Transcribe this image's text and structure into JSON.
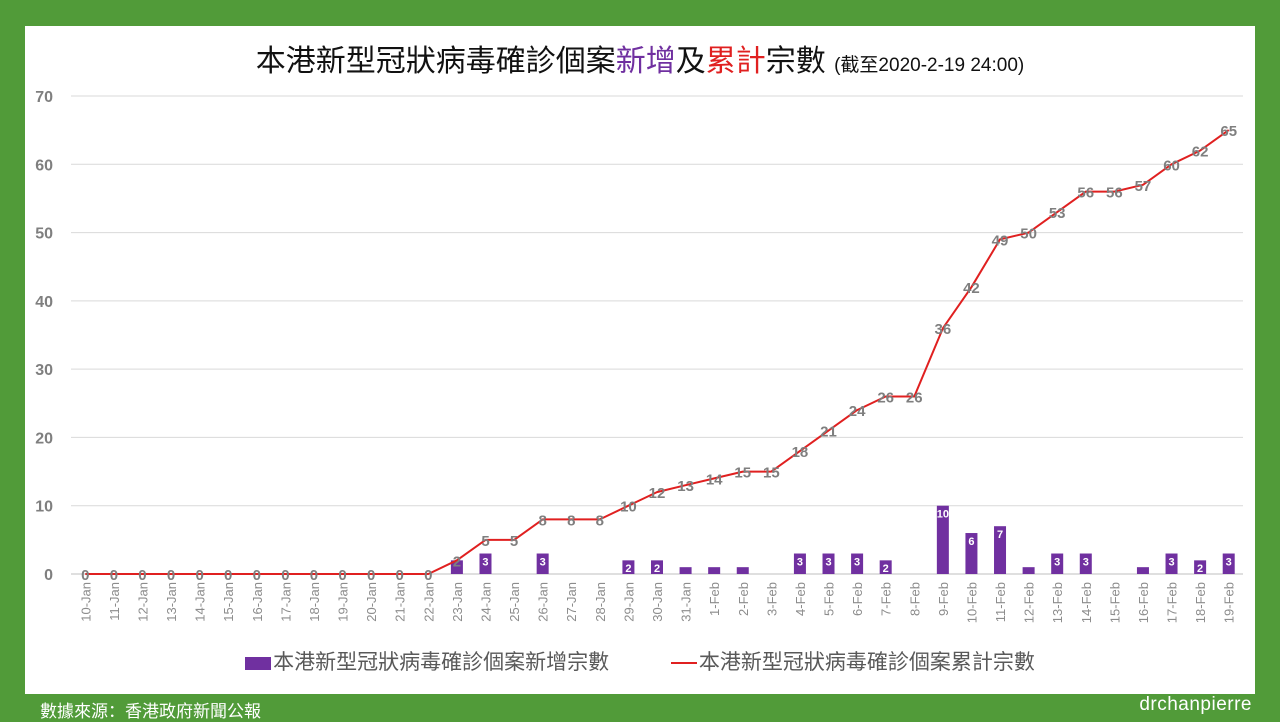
{
  "colors": {
    "frame": "#519b39",
    "bar": "#7030a0",
    "line": "#e02020",
    "title_new": "#7030a0",
    "title_cumulative": "#e02020"
  },
  "title": {
    "part1": "本港新型冠狀病毒確診個案",
    "new": "新增",
    "and": "及",
    "cumulative": "累計",
    "part2": "宗數",
    "note": "(截至2020-2-19  24:00)"
  },
  "legend": {
    "bar_label": "本港新型冠狀病毒確診個案新增宗數",
    "line_label": "本港新型冠狀病毒確診個案累計宗數"
  },
  "footer": {
    "source": "數據來源：香港政府新聞公報",
    "author": "drchanpierre"
  },
  "chart_data": {
    "type": "bar+line",
    "ylim": [
      0,
      70
    ],
    "yticks": [
      0,
      10,
      20,
      30,
      40,
      50,
      60,
      70
    ],
    "grid": true,
    "legend_position": "bottom",
    "categories": [
      "10-Jan",
      "11-Jan",
      "12-Jan",
      "13-Jan",
      "14-Jan",
      "15-Jan",
      "16-Jan",
      "17-Jan",
      "18-Jan",
      "19-Jan",
      "20-Jan",
      "21-Jan",
      "22-Jan",
      "23-Jan",
      "24-Jan",
      "25-Jan",
      "26-Jan",
      "27-Jan",
      "28-Jan",
      "29-Jan",
      "30-Jan",
      "31-Jan",
      "1-Feb",
      "2-Feb",
      "3-Feb",
      "4-Feb",
      "5-Feb",
      "6-Feb",
      "7-Feb",
      "8-Feb",
      "9-Feb",
      "10-Feb",
      "11-Feb",
      "12-Feb",
      "13-Feb",
      "14-Feb",
      "15-Feb",
      "16-Feb",
      "17-Feb",
      "18-Feb",
      "19-Feb"
    ],
    "series": [
      {
        "name": "本港新型冠狀病毒確診個案新增宗數",
        "type": "bar",
        "values": [
          0,
          0,
          0,
          0,
          0,
          0,
          0,
          0,
          0,
          0,
          0,
          0,
          0,
          2,
          3,
          0,
          3,
          0,
          0,
          2,
          2,
          1,
          1,
          1,
          0,
          3,
          3,
          3,
          2,
          0,
          10,
          6,
          7,
          1,
          3,
          3,
          0,
          1,
          3,
          2,
          3
        ],
        "labels": [
          "",
          "",
          "",
          "",
          "",
          "",
          "",
          "",
          "",
          "",
          "",
          "",
          "",
          "",
          "3",
          "",
          "3",
          "",
          "",
          "2",
          "2",
          "",
          "",
          "",
          "",
          "3",
          "3",
          "3",
          "2",
          "",
          "10",
          "6",
          "7",
          "",
          "3",
          "3",
          "",
          "",
          "3",
          "2",
          "3"
        ]
      },
      {
        "name": "本港新型冠狀病毒確診個案累計宗數",
        "type": "line",
        "values": [
          0,
          0,
          0,
          0,
          0,
          0,
          0,
          0,
          0,
          0,
          0,
          0,
          0,
          2,
          5,
          5,
          8,
          8,
          8,
          10,
          12,
          13,
          14,
          15,
          15,
          18,
          21,
          24,
          26,
          26,
          36,
          42,
          49,
          50,
          53,
          56,
          56,
          57,
          60,
          62,
          65
        ]
      }
    ]
  }
}
